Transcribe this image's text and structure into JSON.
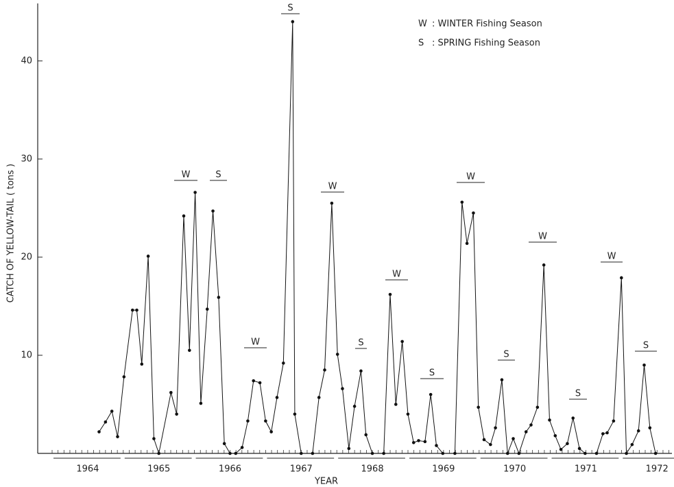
{
  "chart_data": {
    "type": "line",
    "y_label": "CATCH OF YELLOW-TAIL ( tons )",
    "x_label": "YEAR",
    "legend": [
      {
        "symbol": "W",
        "text": ": WINTER Fishing Season"
      },
      {
        "symbol": "S",
        "text": ": SPRING Fishing Season"
      }
    ],
    "annotations": [
      "W",
      "S",
      "W",
      "S",
      "W",
      "S",
      "W",
      "S",
      "W",
      "S",
      "W",
      "S",
      "W",
      "S"
    ],
    "xlim": [
      1964,
      1972.71
    ],
    "xticks": [
      {
        "value": 1964.5,
        "label": "1964"
      },
      {
        "value": 1965.5,
        "label": "1965"
      },
      {
        "value": 1966.5,
        "label": "1966"
      },
      {
        "value": 1967.5,
        "label": "1967"
      },
      {
        "value": 1968.5,
        "label": "1968"
      },
      {
        "value": 1969.5,
        "label": "1969"
      },
      {
        "value": 1970.5,
        "label": "1970"
      },
      {
        "value": 1971.5,
        "label": "1971"
      },
      {
        "value": 1972.5,
        "label": "1972"
      }
    ],
    "ylim": [
      0,
      46
    ],
    "yticks": [
      10,
      20,
      30,
      40
    ],
    "color": "#111111",
    "x": [
      1964.66,
      1964.75,
      1964.84,
      1964.92,
      1965.01,
      1965.13,
      1965.19,
      1965.26,
      1965.35,
      1965.43,
      1965.5,
      1965.67,
      1965.75,
      1965.85,
      1965.93,
      1966.01,
      1966.09,
      1966.18,
      1966.26,
      1966.34,
      1966.42,
      1966.5,
      1966.58,
      1966.67,
      1966.75,
      1966.83,
      1966.92,
      1967.0,
      1967.08,
      1967.16,
      1967.25,
      1967.38,
      1967.41,
      1967.5,
      1967.66,
      1967.75,
      1967.83,
      1967.93,
      1968.01,
      1968.08,
      1968.17,
      1968.25,
      1968.34,
      1968.41,
      1968.5,
      1968.66,
      1968.75,
      1968.83,
      1968.92,
      1969.0,
      1969.08,
      1969.15,
      1969.24,
      1969.32,
      1969.4,
      1969.49,
      1969.66,
      1969.76,
      1969.83,
      1969.92,
      1969.99,
      1970.07,
      1970.16,
      1970.23,
      1970.32,
      1970.4,
      1970.48,
      1970.56,
      1970.66,
      1970.73,
      1970.82,
      1970.91,
      1970.99,
      1971.07,
      1971.15,
      1971.24,
      1971.32,
      1971.41,
      1971.49,
      1971.65,
      1971.74,
      1971.8,
      1971.89,
      1972.0,
      1972.07,
      1972.15,
      1972.24,
      1972.32,
      1972.4,
      1972.48
    ],
    "values": [
      2.2,
      3.2,
      4.3,
      1.7,
      7.8,
      14.6,
      14.6,
      9.1,
      20.1,
      1.5,
      0,
      6.2,
      4.0,
      24.2,
      10.5,
      26.6,
      5.1,
      14.7,
      24.7,
      15.9,
      1.0,
      0,
      0,
      0.6,
      3.3,
      7.4,
      7.2,
      3.3,
      2.2,
      5.7,
      9.2,
      44,
      4.0,
      0,
      0,
      5.7,
      8.5,
      25.5,
      10.1,
      6.6,
      0.5,
      4.8,
      8.4,
      1.9,
      0,
      0,
      16.2,
      5.0,
      11.4,
      4.0,
      1.1,
      1.3,
      1.2,
      6.0,
      0.8,
      0,
      0,
      25.6,
      21.4,
      24.5,
      4.7,
      1.4,
      0.9,
      2.6,
      7.5,
      0,
      1.5,
      0,
      2.2,
      2.9,
      4.7,
      19.2,
      3.4,
      1.8,
      0.4,
      1.0,
      3.6,
      0.5,
      0,
      0,
      2.0,
      2.1,
      3.3,
      17.9,
      0,
      0.9,
      2.3,
      9.0,
      2.6,
      0
    ]
  }
}
